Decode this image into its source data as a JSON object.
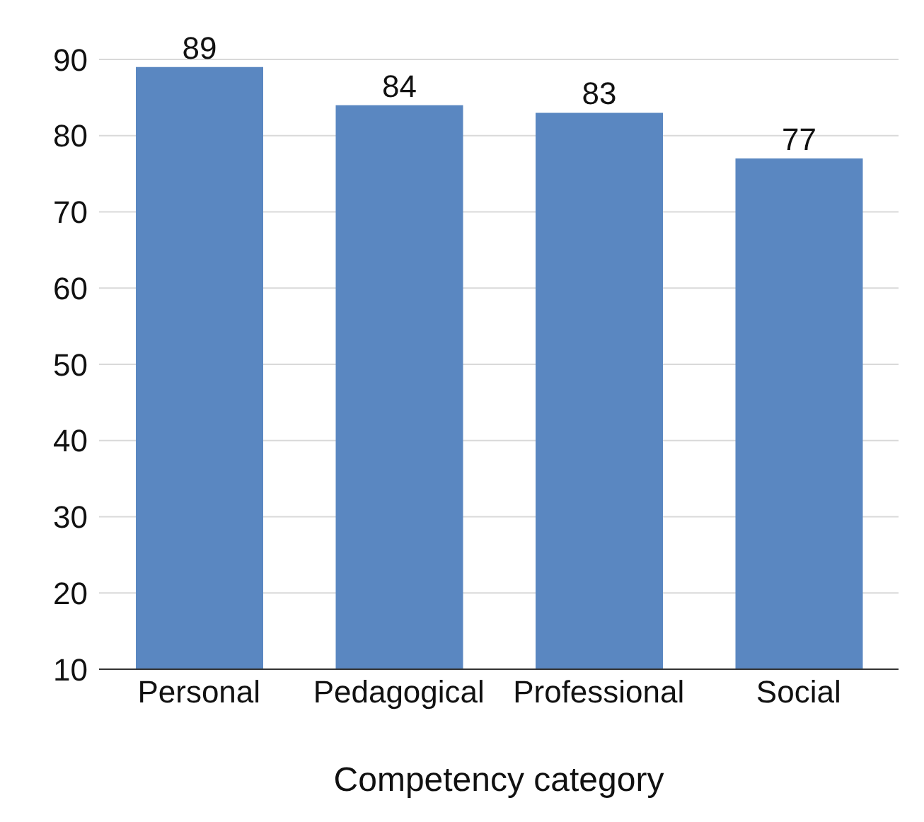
{
  "chart_data": {
    "type": "bar",
    "xlabel": "Competency category",
    "categories": [
      "Personal",
      "Pedagogical",
      "Professional",
      "Social"
    ],
    "values": [
      89,
      84,
      83,
      77
    ],
    "data_labels": true,
    "color": "#5a87c1",
    "ylim": [
      10,
      90
    ],
    "yticks": [
      10,
      20,
      30,
      40,
      50,
      60,
      70,
      80,
      90
    ],
    "grid": "y"
  }
}
